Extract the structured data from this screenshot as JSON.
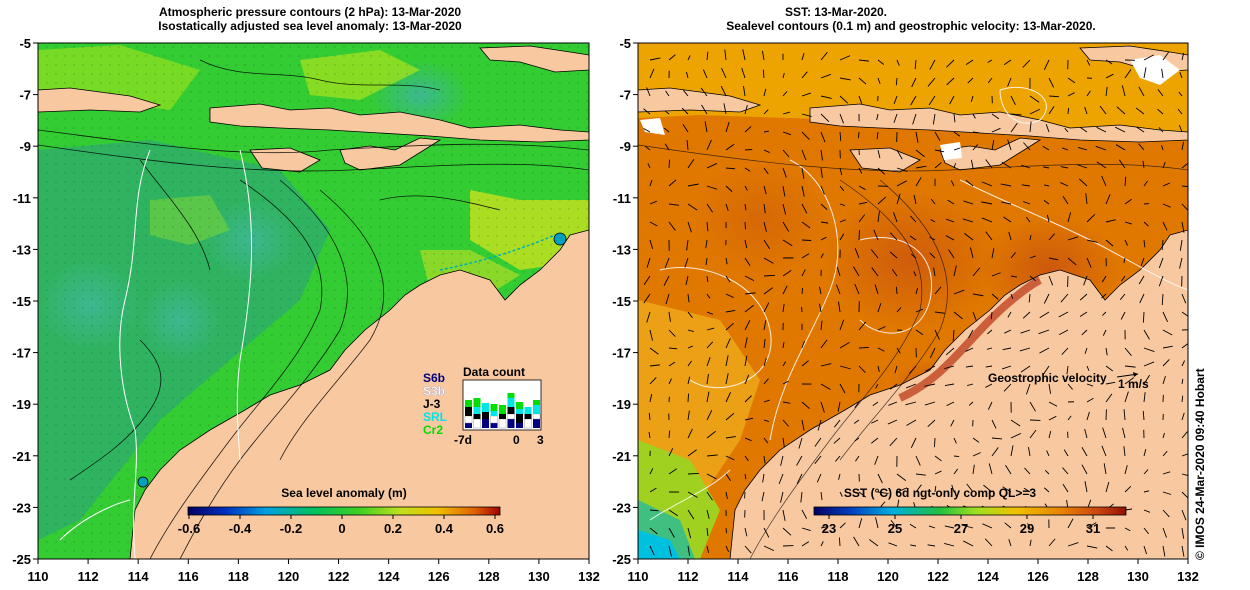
{
  "left_panel": {
    "title_line1": "Atmospheric pressure contours (2 hPa): 13-Mar-2020",
    "title_line2": "Isostatically adjusted sea level anomaly: 13-Mar-2020",
    "x_ticks": [
      "110",
      "112",
      "114",
      "116",
      "118",
      "120",
      "122",
      "124",
      "126",
      "128",
      "130",
      "132"
    ],
    "y_ticks": [
      "-5",
      "-7",
      "-9",
      "-11",
      "-13",
      "-15",
      "-17",
      "-19",
      "-21",
      "-23",
      "-25"
    ],
    "colorbar_title": "Sea level anomaly (m)",
    "colorbar_ticks": [
      "-0.6",
      "-0.4",
      "-0.2",
      "0",
      "0.2",
      "0.4",
      "0.6"
    ],
    "data_count": {
      "title": "Data count",
      "missions": [
        {
          "label": "S6b",
          "color": "#000080"
        },
        {
          "label": "S3b",
          "color": "#ffffff"
        },
        {
          "label": "J-3",
          "color": "#000000"
        },
        {
          "label": "SRL",
          "color": "#00e5e5"
        },
        {
          "label": "Cr2",
          "color": "#00dd00"
        }
      ],
      "axis_labels": [
        "-7d",
        "0",
        "3"
      ]
    }
  },
  "right_panel": {
    "title_line1": "SST: 13-Mar-2020.",
    "title_line2": "Sealevel contours (0.1 m) and geostrophic velocity: 13-Mar-2020.",
    "x_ticks": [
      "110",
      "112",
      "114",
      "116",
      "118",
      "120",
      "122",
      "124",
      "126",
      "128",
      "130",
      "132"
    ],
    "y_ticks": [
      "-5",
      "-7",
      "-9",
      "-11",
      "-13",
      "-15",
      "-17",
      "-19",
      "-21",
      "-23",
      "-25"
    ],
    "colorbar_title": "SST (°C) 6d ngt-only comp QL>=3",
    "colorbar_ticks": [
      "23",
      "25",
      "27",
      "29",
      "31"
    ],
    "velocity_label": "Geostrophic velocity",
    "velocity_scale": "1 m/s"
  },
  "credit": "© IMOS 24-Mar-2020 09:40 Hobart",
  "colors": {
    "land": "#f8c8a0",
    "sla_ocean": "#33cc33",
    "sla_deep": "#22aa66",
    "sst_ocean": "#e07800",
    "sst_warm": "#c84010",
    "sst_cool": "#f0a800"
  }
}
